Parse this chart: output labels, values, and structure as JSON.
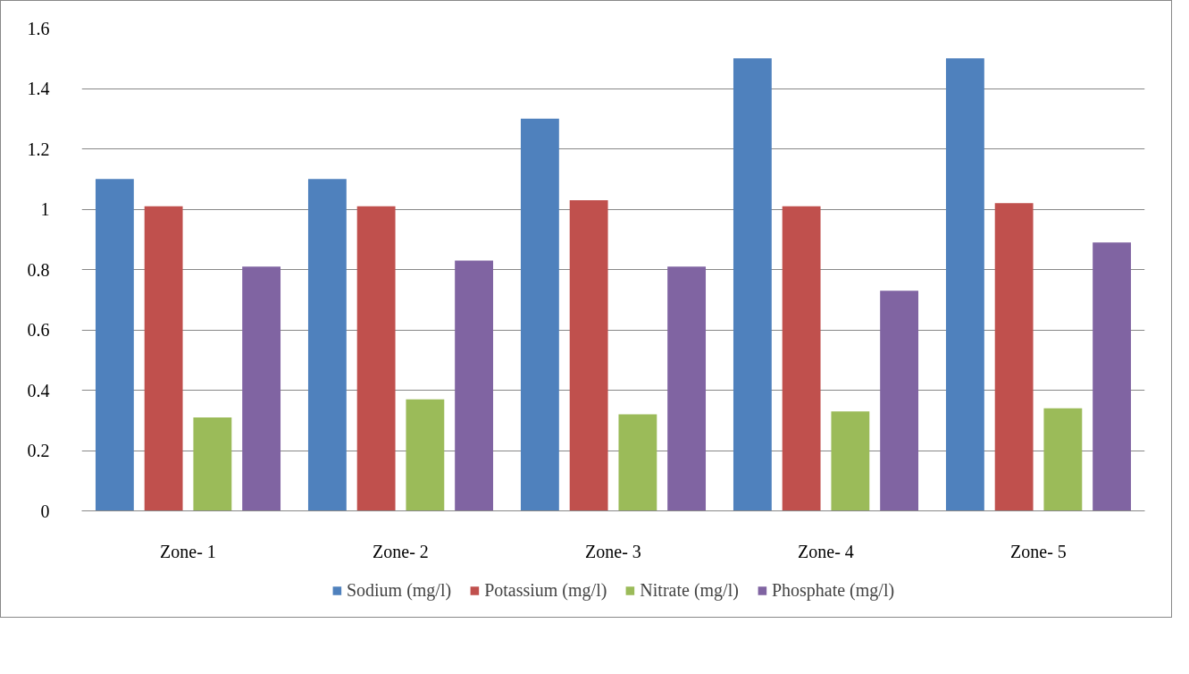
{
  "chart_data": {
    "type": "bar",
    "categories": [
      "Zone- 1",
      "Zone- 2",
      "Zone- 3",
      "Zone- 4",
      "Zone- 5"
    ],
    "series": [
      {
        "name": "Sodium (mg/l)",
        "color": "#4f81bd",
        "values": [
          1.1,
          1.1,
          1.3,
          1.5,
          1.5
        ]
      },
      {
        "name": "Potassium (mg/l)",
        "color": "#c0504d",
        "values": [
          1.01,
          1.01,
          1.03,
          1.01,
          1.02
        ]
      },
      {
        "name": "Nitrate (mg/l)",
        "color": "#9bbb59",
        "values": [
          0.31,
          0.37,
          0.32,
          0.33,
          0.34
        ]
      },
      {
        "name": "Phosphate (mg/l)",
        "color": "#8064a2",
        "values": [
          0.81,
          0.83,
          0.81,
          0.73,
          0.89
        ]
      }
    ],
    "ylim": [
      0,
      1.6
    ],
    "yticks": [
      0,
      0.2,
      0.4,
      0.6,
      0.8,
      1,
      1.2,
      1.4,
      1.6
    ],
    "grid": "y",
    "legend": "bottom"
  }
}
